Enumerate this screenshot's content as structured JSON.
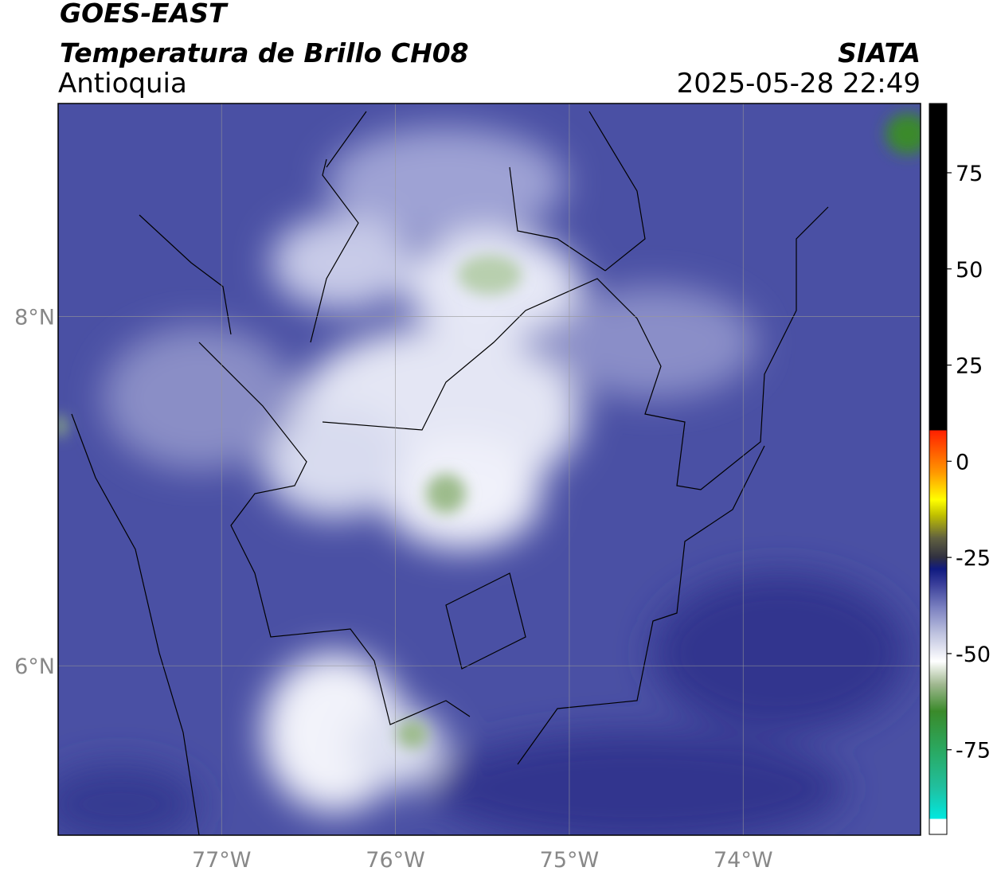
{
  "header": {
    "title": "GOES-EAST",
    "subtitle": "Temperatura de Brillo CH08",
    "region": "Antioquia",
    "source": "SIATA",
    "datetime": "2025-05-28 22:49"
  },
  "map": {
    "xlim": [
      -77.94,
      -72.98
    ],
    "ylim": [
      5.03,
      9.22
    ],
    "xticks": [
      {
        "value": -77,
        "label": "77°W"
      },
      {
        "value": -76,
        "label": "76°W"
      },
      {
        "value": -75,
        "label": "75°W"
      },
      {
        "value": -74,
        "label": "74°W"
      }
    ],
    "yticks": [
      {
        "value": 6,
        "label": "6°N"
      },
      {
        "value": 8,
        "label": "8°N"
      }
    ],
    "grid": true
  },
  "colorbar": {
    "lim": [
      -97,
      93
    ],
    "ticks": [
      -75,
      -50,
      -25,
      0,
      25,
      50,
      75
    ],
    "stops": [
      [
        -97,
        "#ffffff"
      ],
      [
        -93,
        "#ffffff"
      ],
      [
        -93,
        "#00e8e0"
      ],
      [
        -85,
        "#20c0a0"
      ],
      [
        -75,
        "#2aa860"
      ],
      [
        -65,
        "#3a8a2a"
      ],
      [
        -58,
        "#a0b890"
      ],
      [
        -52,
        "#ffffff"
      ],
      [
        -45,
        "#c0c4e0"
      ],
      [
        -38,
        "#7a80c0"
      ],
      [
        -32,
        "#3a3f9a"
      ],
      [
        -28,
        "#101a80"
      ],
      [
        -25,
        "#303040"
      ],
      [
        -20,
        "#606040"
      ],
      [
        -14,
        "#c0c000"
      ],
      [
        -10,
        "#ffff00"
      ],
      [
        -3,
        "#ff9900"
      ],
      [
        8,
        "#ff2000"
      ],
      [
        8,
        "#000000"
      ],
      [
        93,
        "#000000"
      ]
    ]
  }
}
